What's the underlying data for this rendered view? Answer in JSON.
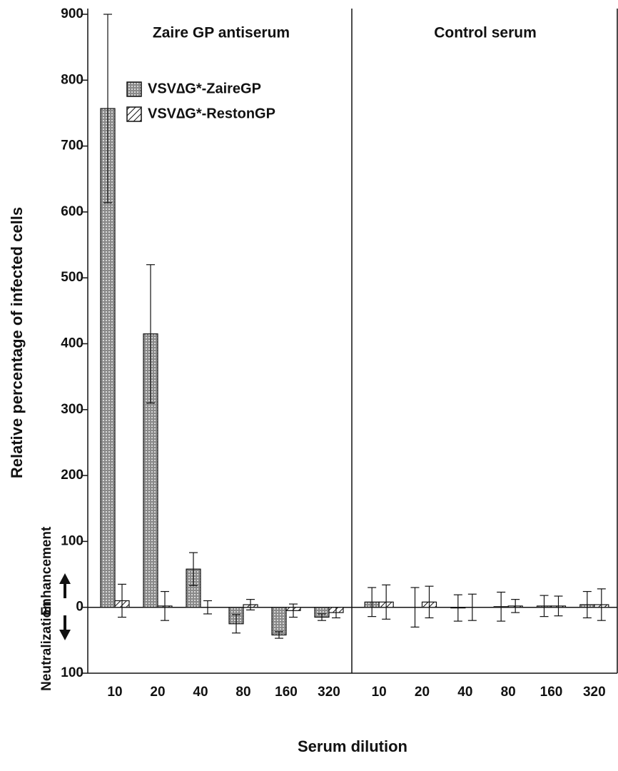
{
  "chart_data": {
    "type": "bar",
    "y_label": "Relative percentage of infected cells",
    "x_label": "Serum dilution",
    "annotations": [
      "Enhancement",
      "Neutralization"
    ],
    "panels": [
      "Zaire GP antiserum",
      "Control serum"
    ],
    "categories": [
      "10",
      "20",
      "40",
      "80",
      "160",
      "320"
    ],
    "ylim": [
      -100,
      900
    ],
    "yticks": [
      {
        "value": -100,
        "label": "100"
      },
      0,
      100,
      200,
      300,
      400,
      500,
      600,
      700,
      800,
      900
    ],
    "series": [
      {
        "name": "VSV∆G*-ZaireGP",
        "color": "#9a9a9a",
        "pattern": "dots",
        "panels": [
          {
            "values": [
              757,
              415,
              58,
              -25,
              -42,
              -15
            ],
            "errors": [
              143,
              105,
              25,
              14,
              5,
              5
            ]
          },
          {
            "values": [
              8,
              0,
              -1,
              1,
              2,
              4
            ],
            "errors": [
              22,
              30,
              20,
              22,
              16,
              20
            ]
          }
        ]
      },
      {
        "name": "VSV∆G*-RestonGP",
        "color": "#ffffff",
        "pattern": "stripes",
        "panels": [
          {
            "values": [
              10,
              2,
              0,
              4,
              -5,
              -8
            ],
            "errors": [
              25,
              22,
              10,
              8,
              10,
              8
            ]
          },
          {
            "values": [
              8,
              8,
              0,
              2,
              2,
              4
            ],
            "errors": [
              26,
              24,
              20,
              10,
              15,
              24
            ]
          }
        ]
      }
    ]
  }
}
